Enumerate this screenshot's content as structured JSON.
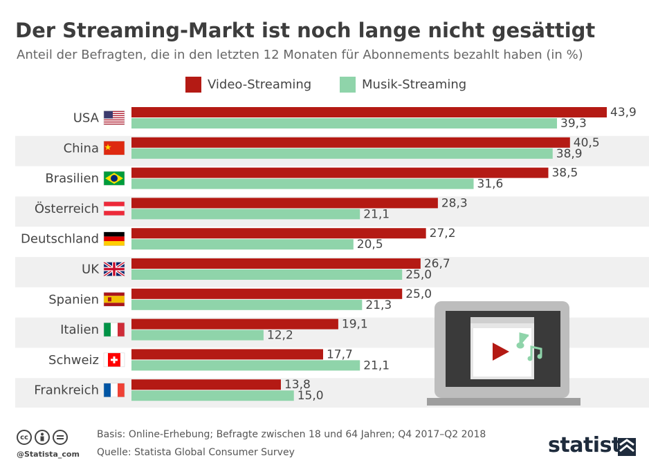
{
  "header": {
    "title": "Der Streaming-Markt ist noch lange nicht gesättigt",
    "subtitle": "Anteil der Befragten, die in den letzten 12 Monaten für Abonnements bezahlt haben (in %)"
  },
  "legend": {
    "video": "Video-Streaming",
    "musik": "Musik-Streaming"
  },
  "colors": {
    "video": "#b41a14",
    "musik": "#8fd4aa",
    "band": "#f0f0f0"
  },
  "chart_data": {
    "type": "bar",
    "orientation": "horizontal",
    "categories": [
      "USA",
      "China",
      "Brasilien",
      "Österreich",
      "Deutschland",
      "UK",
      "Spanien",
      "Italien",
      "Schweiz",
      "Frankreich"
    ],
    "series": [
      {
        "name": "Video-Streaming",
        "values": [
          43.9,
          40.5,
          38.5,
          28.3,
          27.2,
          26.7,
          25.0,
          19.1,
          17.7,
          13.8
        ]
      },
      {
        "name": "Musik-Streaming",
        "values": [
          39.3,
          38.9,
          31.6,
          21.1,
          20.5,
          25.0,
          21.3,
          12.2,
          21.1,
          15.0
        ]
      }
    ],
    "value_labels": {
      "Video-Streaming": [
        "43,9",
        "40,5",
        "38,5",
        "28,3",
        "27,2",
        "26,7",
        "25,0",
        "19,1",
        "17,7",
        "13,8"
      ],
      "Musik-Streaming": [
        "39,3",
        "38,9",
        "31,6",
        "21,1",
        "20,5",
        "25,0",
        "21,3",
        "12,2",
        "21,1",
        "15,0"
      ]
    },
    "flags": [
      "flag-usa-icon",
      "flag-china-icon",
      "flag-brazil-icon",
      "flag-austria-icon",
      "flag-germany-icon",
      "flag-uk-icon",
      "flag-spain-icon",
      "flag-italy-icon",
      "flag-switzerland-icon",
      "flag-france-icon"
    ],
    "xlim": [
      0,
      43.9
    ],
    "legend_position": "top-center",
    "grid": false
  },
  "footer": {
    "basis": "Basis: Online-Erhebung; Befragte zwischen 18 und 64 Jahren; Q4 2017–Q2 2018",
    "quelle": "Quelle: Statista Global Consumer Survey",
    "handle": "@Statista_com",
    "brand": "statista"
  }
}
